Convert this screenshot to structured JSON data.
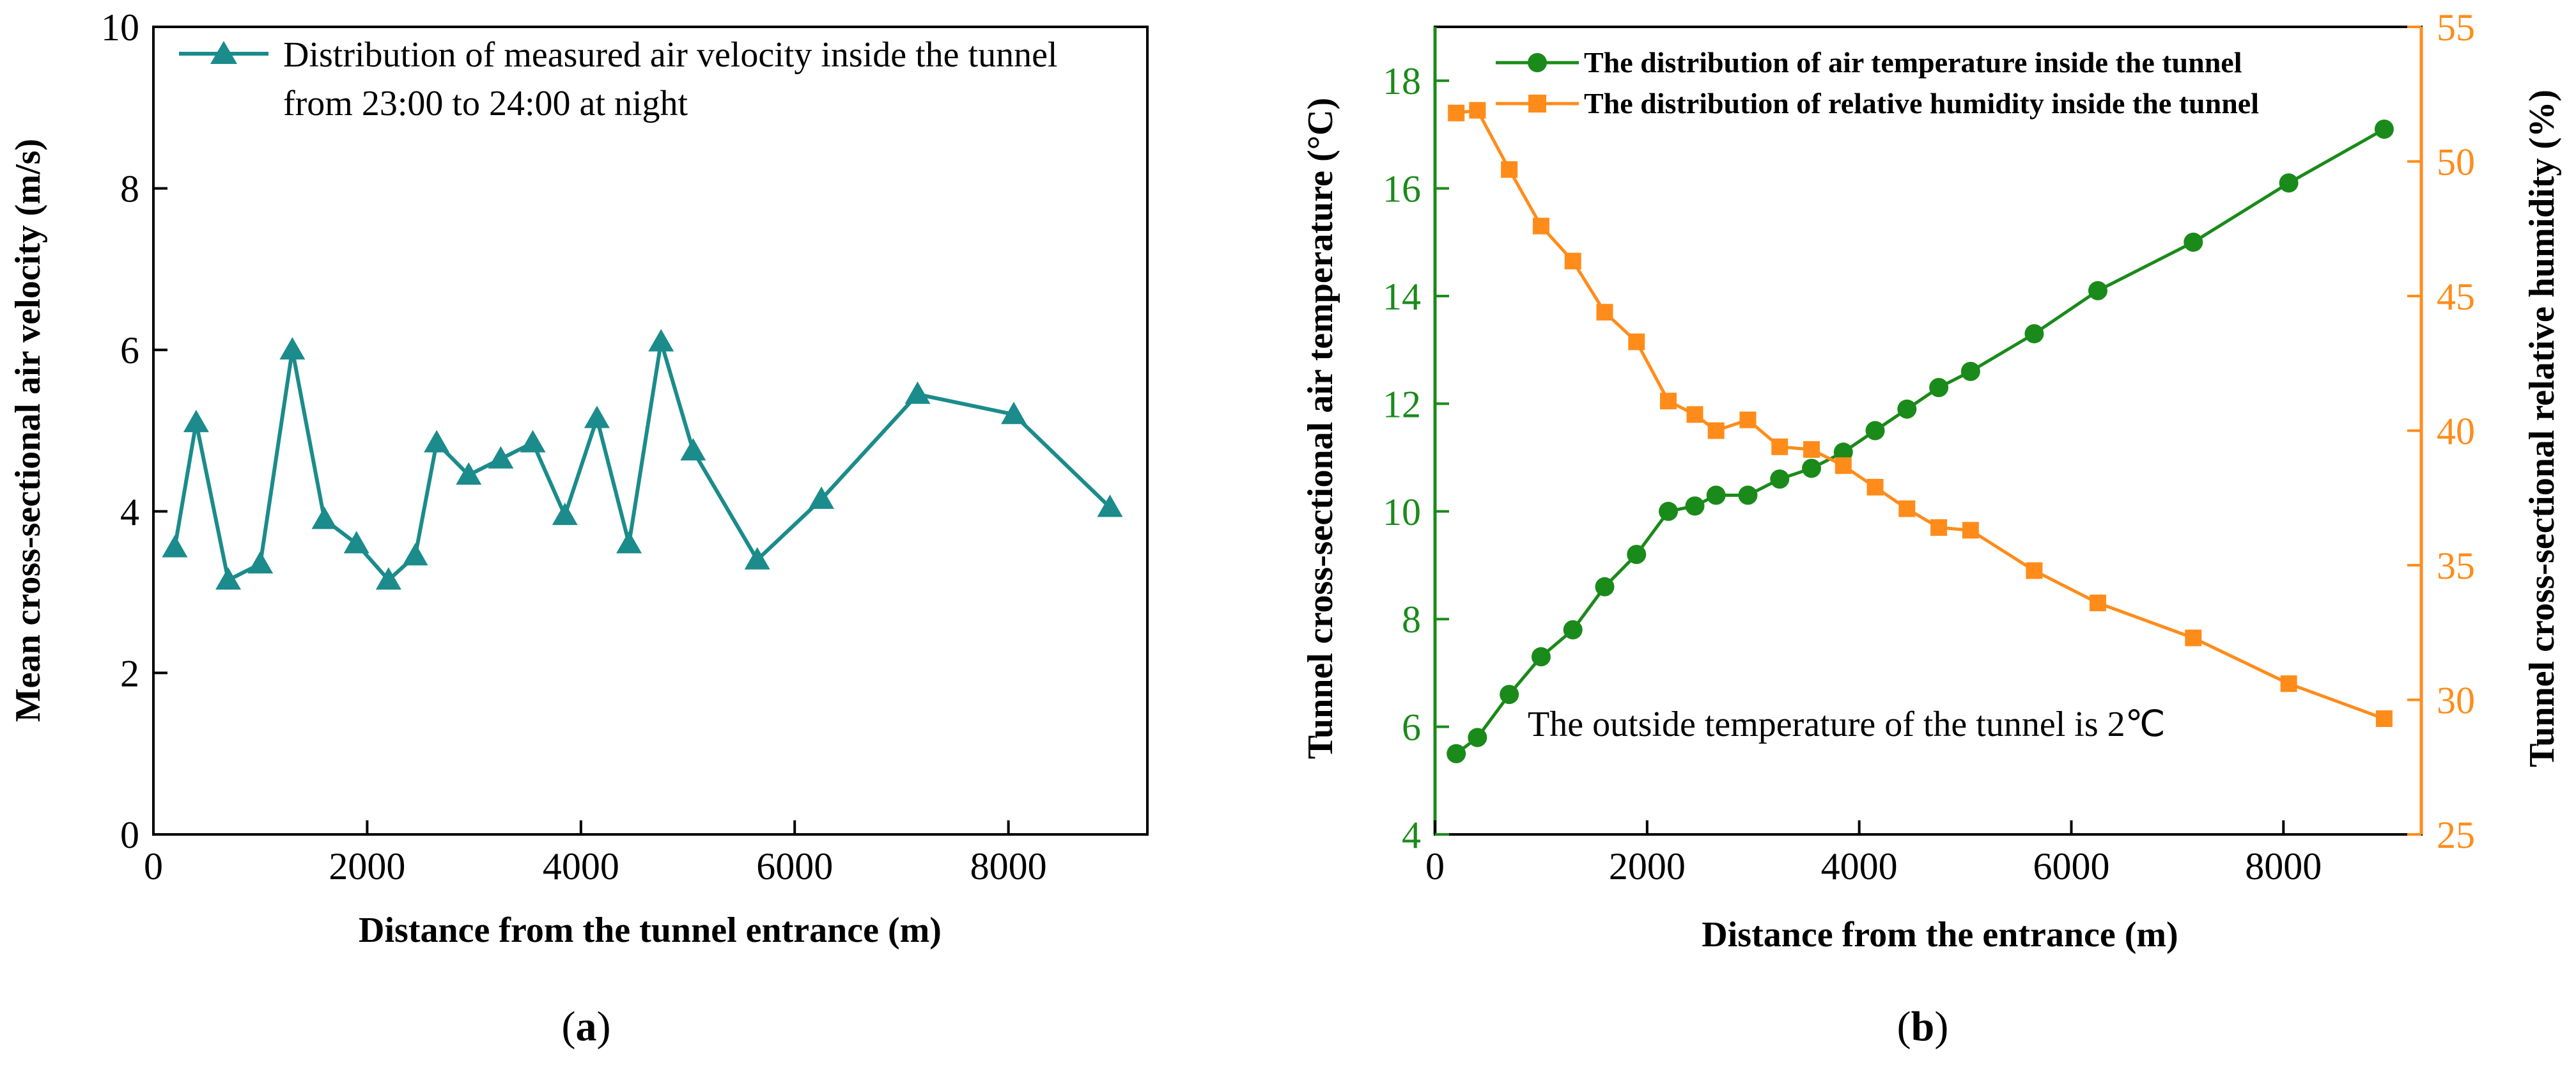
{
  "chart_data": [
    {
      "type": "line",
      "panel_label": "(a)",
      "panel_letter": "a",
      "xlabel": "Distance from the tunnel entrance (m)",
      "ylabel": "Mean cross-sectional air velocity  (m/s)",
      "xlim": [
        0,
        9300
      ],
      "ylim": [
        0,
        10
      ],
      "x_ticks": [
        0,
        2000,
        4000,
        6000,
        8000
      ],
      "y_ticks": [
        0,
        2,
        4,
        6,
        8,
        10
      ],
      "legend_position": "top-right",
      "series": [
        {
          "name": "Distribution of measured air velocity inside the tunnel",
          "name_line2": "from 23:00 to 24:00 at night",
          "color": "#1B8B8B",
          "marker": "triangle",
          "x": [
            200,
            400,
            700,
            1000,
            1300,
            1600,
            1900,
            2200,
            2450,
            2650,
            2950,
            3250,
            3550,
            3850,
            4150,
            4450,
            4750,
            5050,
            5650,
            6250,
            7150,
            8050,
            8950
          ],
          "y": [
            3.55,
            5.1,
            3.15,
            3.35,
            6.0,
            3.9,
            3.6,
            3.15,
            3.45,
            4.85,
            4.45,
            4.65,
            4.85,
            3.95,
            5.15,
            3.6,
            6.1,
            4.75,
            3.4,
            4.15,
            5.45,
            5.2,
            4.05
          ]
        }
      ]
    },
    {
      "type": "line",
      "panel_label": "(b)",
      "panel_letter": "b",
      "xlabel": "Distance from the entrance  (m)",
      "ylabel": "Tunnel cross-sectional air temperature  (°C)",
      "y2label": "Tunnel cross-sectional relative humidity  (%)",
      "xlim": [
        0,
        9300
      ],
      "ylim": [
        4,
        19
      ],
      "y2lim": [
        25,
        55
      ],
      "x_ticks": [
        0,
        2000,
        4000,
        6000,
        8000
      ],
      "y_ticks": [
        4,
        6,
        8,
        10,
        12,
        14,
        16,
        18
      ],
      "y2_ticks": [
        25,
        30,
        35,
        40,
        45,
        50,
        55
      ],
      "annotation": "The outside temperature of the tunnel is 2℃",
      "legend_position": "top-right",
      "series": [
        {
          "name": "The distribution of air temperature inside the tunnel",
          "color": "#1A8A1A",
          "marker": "circle",
          "axis": "left",
          "x": [
            200,
            400,
            700,
            1000,
            1300,
            1600,
            1900,
            2200,
            2450,
            2650,
            2950,
            3250,
            3550,
            3850,
            4150,
            4450,
            4750,
            5050,
            5650,
            6250,
            7150,
            8050,
            8950
          ],
          "y": [
            5.5,
            5.8,
            6.6,
            7.3,
            7.8,
            8.6,
            9.2,
            10.0,
            10.1,
            10.3,
            10.3,
            10.6,
            10.8,
            11.1,
            11.5,
            11.9,
            12.3,
            12.6,
            13.3,
            14.1,
            15.0,
            16.1,
            17.1
          ]
        },
        {
          "name": "The distribution of relative humidity inside the tunnel",
          "color": "#FF8C1A",
          "marker": "square",
          "axis": "right",
          "x": [
            200,
            400,
            700,
            1000,
            1300,
            1600,
            1900,
            2200,
            2450,
            2650,
            2950,
            3250,
            3550,
            3850,
            4150,
            4450,
            4750,
            5050,
            5650,
            6250,
            7150,
            8050,
            8950
          ],
          "y": [
            51.8,
            51.9,
            49.7,
            47.6,
            46.3,
            44.4,
            43.3,
            41.1,
            40.6,
            40.0,
            40.4,
            39.4,
            39.3,
            38.7,
            37.9,
            37.1,
            36.4,
            36.3,
            34.8,
            33.6,
            32.3,
            30.6,
            29.3
          ]
        }
      ]
    }
  ]
}
